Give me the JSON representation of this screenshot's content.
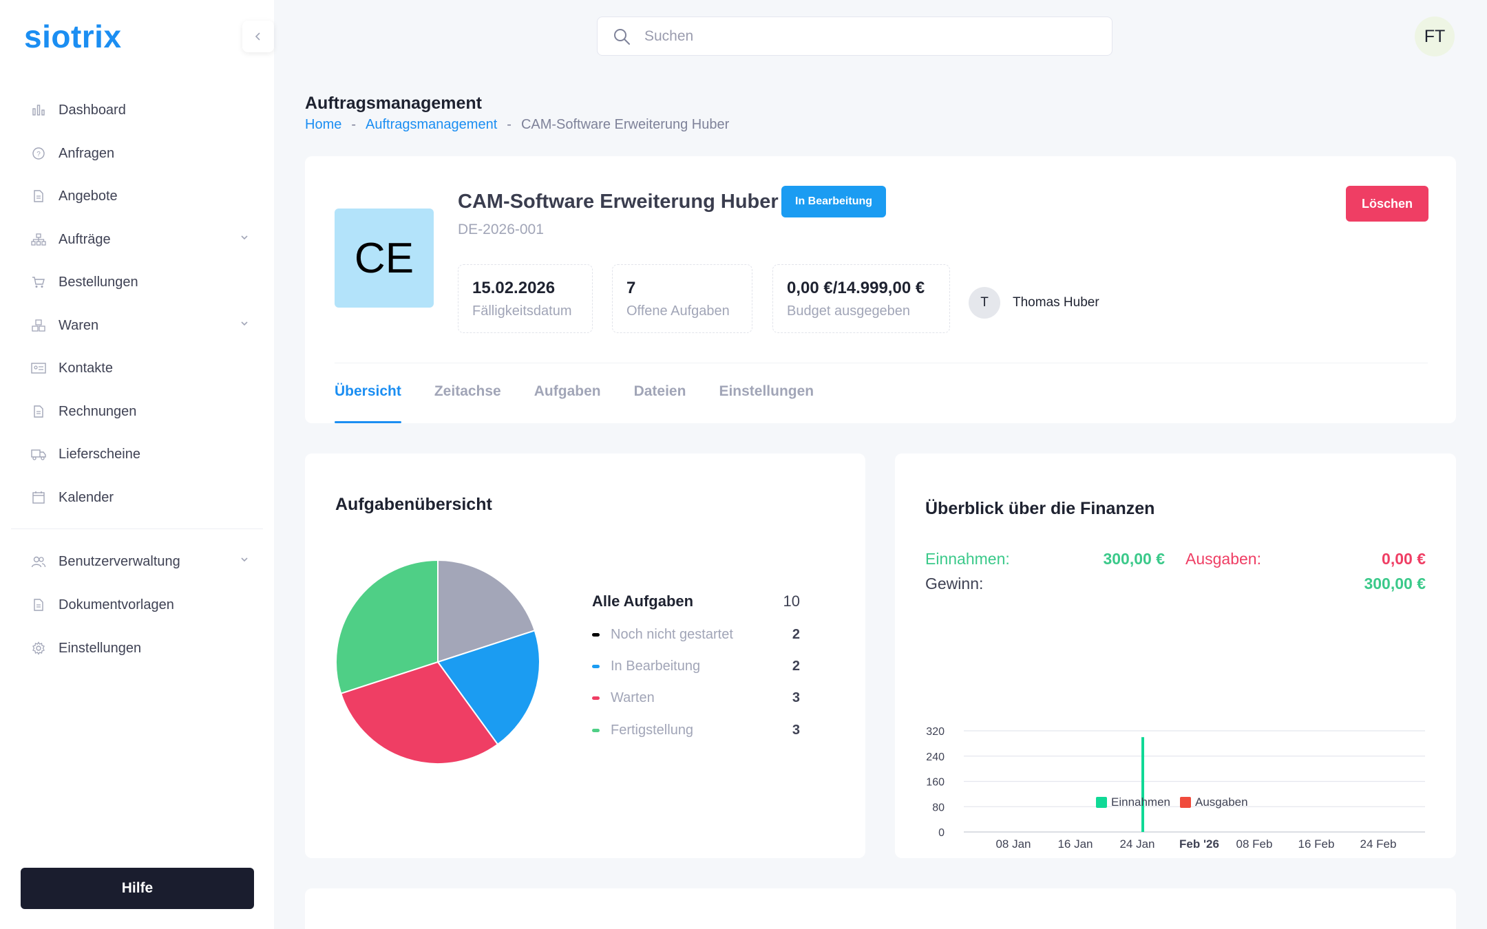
{
  "app": {
    "logo": "siotrix"
  },
  "sidebar": {
    "items": [
      {
        "label": "Dashboard",
        "icon": "bar-chart-icon",
        "has_children": false
      },
      {
        "label": "Anfragen",
        "icon": "question-circle-icon",
        "has_children": false
      },
      {
        "label": "Angebote",
        "icon": "document-icon",
        "has_children": false
      },
      {
        "label": "Aufträge",
        "icon": "sitemap-icon",
        "has_children": true
      },
      {
        "label": "Bestellungen",
        "icon": "cart-icon",
        "has_children": false
      },
      {
        "label": "Waren",
        "icon": "boxes-icon",
        "has_children": true
      },
      {
        "label": "Kontakte",
        "icon": "id-card-icon",
        "has_children": false
      },
      {
        "label": "Rechnungen",
        "icon": "document-icon",
        "has_children": false
      },
      {
        "label": "Lieferscheine",
        "icon": "truck-icon",
        "has_children": false
      },
      {
        "label": "Kalender",
        "icon": "calendar-icon",
        "has_children": false
      },
      {
        "label": "Benutzerverwaltung",
        "icon": "users-icon",
        "has_children": true
      },
      {
        "label": "Dokumentvorlagen",
        "icon": "document-icon",
        "has_children": false
      },
      {
        "label": "Einstellungen",
        "icon": "gear-icon",
        "has_children": false
      }
    ],
    "help_label": "Hilfe"
  },
  "header": {
    "search_placeholder": "Suchen",
    "user_initials": "FT"
  },
  "page": {
    "title": "Auftragsmanagement",
    "breadcrumb": [
      "Home",
      "Auftragsmanagement",
      "CAM-Software Erweiterung Huber"
    ],
    "breadcrumb_sep": "-"
  },
  "project": {
    "initials": "CE",
    "title": "CAM-Software Erweiterung Huber",
    "status": "In Bearbeitung",
    "id": "DE-2026-001",
    "delete_label": "Löschen",
    "stats": [
      {
        "value": "15.02.2026",
        "caption": "Fälligkeitsdatum"
      },
      {
        "value": "7",
        "caption": "Offene Aufgaben"
      },
      {
        "value": "0,00 €/14.999,00 €",
        "caption": "Budget ausgegeben"
      }
    ],
    "owner_initial": "T",
    "owner_name": "Thomas Huber",
    "tabs": [
      "Übersicht",
      "Zeitachse",
      "Aufgaben",
      "Dateien",
      "Einstellungen"
    ],
    "active_tab": 0
  },
  "tasks": {
    "title": "Aufgabenübersicht",
    "total_label": "Alle Aufgaben",
    "total": "10",
    "items": [
      {
        "label": "Noch nicht gestartet",
        "count": "2",
        "color": "#000000",
        "pie_color": "#a3a6b8"
      },
      {
        "label": "In Bearbeitung",
        "count": "2",
        "color": "#1b9cf2",
        "pie_color": "#1b9cf2"
      },
      {
        "label": "Warten",
        "count": "3",
        "color": "#ef3e64",
        "pie_color": "#ef3e64"
      },
      {
        "label": "Fertigstellung",
        "count": "3",
        "color": "#4fcf86",
        "pie_color": "#4fcf86"
      }
    ]
  },
  "finance": {
    "title": "Überblick über die Finanzen",
    "income_label": "Einnahmen:",
    "income_value": "300,00 €",
    "expense_label": "Ausgaben:",
    "expense_value": "0,00 €",
    "profit_label": "Gewinn:",
    "profit_value": "300,00 €"
  },
  "chart_data": {
    "type": "bar",
    "y_ticks": [
      "0",
      "80",
      "160",
      "240",
      "320"
    ],
    "ylim": [
      0,
      320
    ],
    "x_ticks": [
      "08 Jan",
      "16 Jan",
      "24 Jan",
      "Feb '26",
      "08 Feb",
      "16 Feb",
      "24 Feb"
    ],
    "x_tick_bold": "Feb '26",
    "xlim": [
      "2026-01-01",
      "2026-03-01"
    ],
    "series": [
      {
        "name": "Einnahmen",
        "color": "#10d996",
        "points": [
          {
            "x": "2026-01-24",
            "y": 300
          }
        ]
      },
      {
        "name": "Ausgaben",
        "color": "#f04b3c",
        "points": []
      }
    ],
    "grid": true,
    "legend": "bottom"
  }
}
